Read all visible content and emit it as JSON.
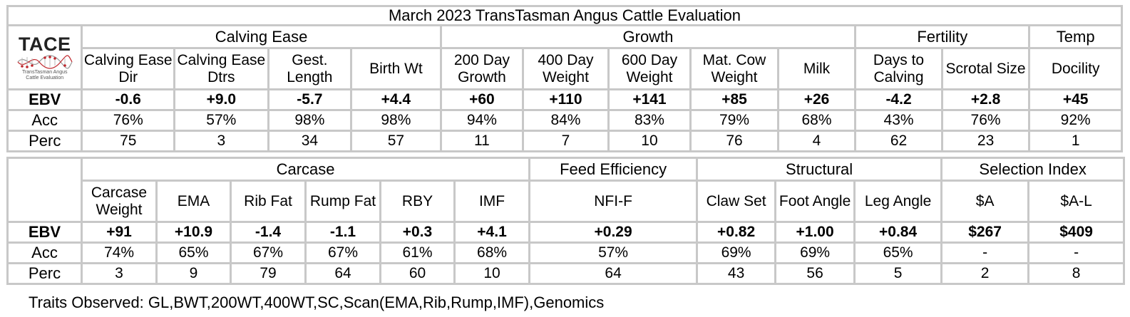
{
  "title": "March 2023 TransTasman Angus Cattle Evaluation",
  "logo": {
    "word": "TACE",
    "sub1": "TransTasman Angus",
    "sub2": "Cattle Evaluation",
    "dot_color": "#c0282d"
  },
  "row_labels": {
    "ebv": "EBV",
    "acc": "Acc",
    "perc": "Perc"
  },
  "table1": {
    "groups": [
      "Calving Ease",
      "Growth",
      "Fertility",
      "Temp"
    ],
    "traits": [
      {
        "label": "Calving Ease Dir",
        "ebv": "-0.6",
        "acc": "76%",
        "perc": "75"
      },
      {
        "label": "Calving Ease Dtrs",
        "ebv": "+9.0",
        "acc": "57%",
        "perc": "3"
      },
      {
        "label": "Gest. Length",
        "ebv": "-5.7",
        "acc": "98%",
        "perc": "34"
      },
      {
        "label": "Birth Wt",
        "ebv": "+4.4",
        "acc": "98%",
        "perc": "57"
      },
      {
        "label": "200 Day Growth",
        "ebv": "+60",
        "acc": "94%",
        "perc": "11"
      },
      {
        "label": "400 Day Weight",
        "ebv": "+110",
        "acc": "84%",
        "perc": "7"
      },
      {
        "label": "600 Day Weight",
        "ebv": "+141",
        "acc": "83%",
        "perc": "10"
      },
      {
        "label": "Mat. Cow Weight",
        "ebv": "+85",
        "acc": "79%",
        "perc": "76"
      },
      {
        "label": "Milk",
        "ebv": "+26",
        "acc": "68%",
        "perc": "4"
      },
      {
        "label": "Days to Calving",
        "ebv": "-4.2",
        "acc": "43%",
        "perc": "62"
      },
      {
        "label": "Scrotal Size",
        "ebv": "+2.8",
        "acc": "76%",
        "perc": "23"
      },
      {
        "label": "Docility",
        "ebv": "+45",
        "acc": "92%",
        "perc": "1"
      }
    ]
  },
  "table2": {
    "groups": [
      "Carcase",
      "Feed Efficiency",
      "Structural",
      "Selection Index"
    ],
    "traits": [
      {
        "label": "Carcase Weight",
        "ebv": "+91",
        "acc": "74%",
        "perc": "3"
      },
      {
        "label": "EMA",
        "ebv": "+10.9",
        "acc": "65%",
        "perc": "9"
      },
      {
        "label": "Rib Fat",
        "ebv": "-1.4",
        "acc": "67%",
        "perc": "79"
      },
      {
        "label": "Rump Fat",
        "ebv": "-1.1",
        "acc": "67%",
        "perc": "64"
      },
      {
        "label": "RBY",
        "ebv": "+0.3",
        "acc": "61%",
        "perc": "60"
      },
      {
        "label": "IMF",
        "ebv": "+4.1",
        "acc": "68%",
        "perc": "10"
      },
      {
        "label": "NFI-F",
        "ebv": "+0.29",
        "acc": "57%",
        "perc": "64"
      },
      {
        "label": "Claw Set",
        "ebv": "+0.82",
        "acc": "69%",
        "perc": "43"
      },
      {
        "label": "Foot Angle",
        "ebv": "+1.00",
        "acc": "69%",
        "perc": "56"
      },
      {
        "label": "Leg Angle",
        "ebv": "+0.84",
        "acc": "65%",
        "perc": "5"
      },
      {
        "label": "$A",
        "ebv": "$267",
        "acc": "-",
        "perc": "2"
      },
      {
        "label": "$A-L",
        "ebv": "$409",
        "acc": "-",
        "perc": "8"
      }
    ]
  },
  "footer": "Traits Observed: GL,BWT,200WT,400WT,SC,Scan(EMA,Rib,Rump,IMF),Genomics",
  "colors": {
    "border": "#c8c8c8",
    "text": "#000000",
    "background": "#ffffff"
  }
}
